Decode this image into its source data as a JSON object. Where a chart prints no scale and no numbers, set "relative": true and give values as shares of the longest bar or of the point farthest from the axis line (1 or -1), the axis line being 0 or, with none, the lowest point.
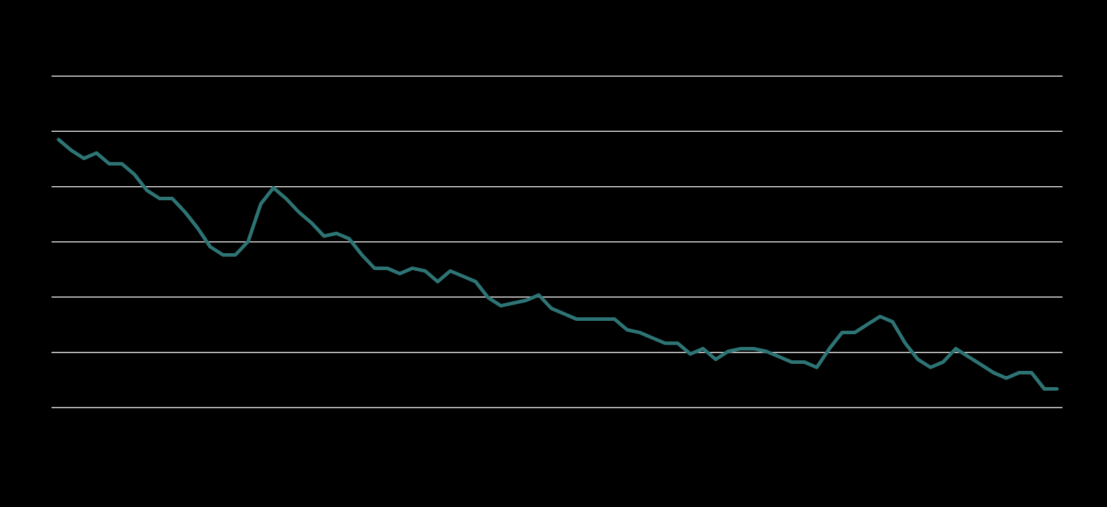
{
  "chart_data": {
    "type": "line",
    "relative": true,
    "grid": "y",
    "marker": "none",
    "line_style": "solid",
    "categories": [
      null,
      null,
      null,
      null,
      null,
      null,
      null,
      null,
      null,
      null,
      null,
      null,
      null,
      null,
      null,
      null,
      null,
      null,
      null,
      null,
      null,
      null,
      null,
      null,
      null,
      null,
      null,
      null,
      null,
      null,
      null,
      null,
      null,
      null,
      null,
      null,
      null,
      null,
      null,
      null,
      null,
      null,
      null,
      null,
      null,
      null,
      null,
      null,
      null,
      null,
      null,
      null,
      null,
      null,
      null,
      null,
      null,
      null,
      null,
      null,
      null,
      null,
      null,
      null,
      null,
      null,
      null,
      null,
      null,
      null,
      null,
      null,
      null,
      null,
      null,
      null,
      null,
      null,
      null,
      null
    ],
    "series": [
      {
        "color": "#2e7474",
        "values": [
          1.0,
          0.96,
          0.93,
          0.95,
          0.91,
          0.91,
          0.87,
          0.81,
          0.78,
          0.78,
          0.73,
          0.67,
          0.6,
          0.57,
          0.57,
          0.62,
          0.76,
          0.82,
          0.78,
          0.73,
          0.69,
          0.64,
          0.65,
          0.63,
          0.57,
          0.52,
          0.52,
          0.5,
          0.52,
          0.51,
          0.47,
          0.51,
          0.49,
          0.47,
          0.41,
          0.38,
          0.39,
          0.4,
          0.42,
          0.37,
          0.35,
          0.33,
          0.33,
          0.33,
          0.33,
          0.29,
          0.28,
          0.26,
          0.24,
          0.24,
          0.2,
          0.22,
          0.18,
          0.21,
          0.22,
          0.22,
          0.21,
          0.19,
          0.17,
          0.17,
          0.15,
          0.22,
          0.28,
          0.28,
          0.31,
          0.34,
          0.32,
          0.24,
          0.18,
          0.15,
          0.17,
          0.22,
          0.19,
          0.16,
          0.13,
          0.11,
          0.13,
          0.13,
          0.07,
          0.07
        ]
      }
    ]
  }
}
